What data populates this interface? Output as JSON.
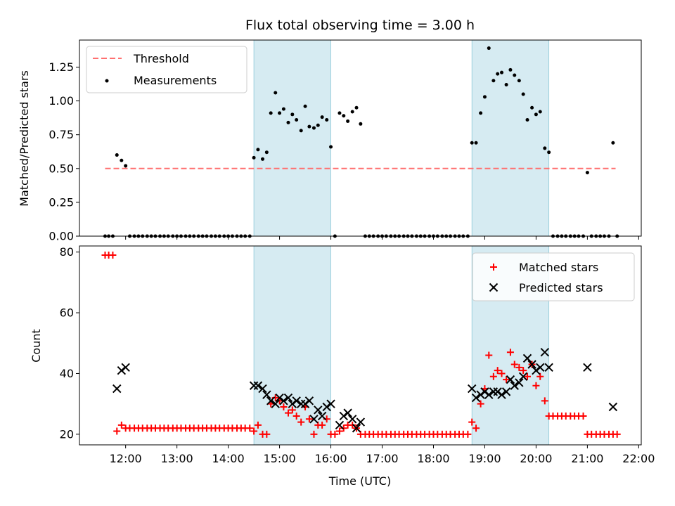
{
  "chart_data": [
    {
      "type": "scatter",
      "title": "Flux total observing time = 3.00 h",
      "xlabel": "",
      "ylabel": "Matched/Predicted stars",
      "ylim": [
        0,
        1.45
      ],
      "yticks": [
        0,
        0.25,
        0.5,
        0.75,
        1.0,
        1.25
      ],
      "ytick_labels": [
        "0.00",
        "0.25",
        "0.50",
        "0.75",
        "1.00",
        "1.25"
      ],
      "shaded_intervals": [
        [
          14.5,
          16.0
        ],
        [
          18.75,
          20.25
        ]
      ],
      "legend": [
        {
          "label": "Threshold",
          "style": "dashed-line",
          "color": "#ff7070"
        },
        {
          "label": "Measurements",
          "style": "dot",
          "color": "#000000"
        }
      ],
      "legend_position": "top-left",
      "threshold": {
        "value": 0.5,
        "x_range": [
          11.6,
          21.55
        ]
      },
      "measurements": [
        [
          11.6,
          0
        ],
        [
          11.67,
          0
        ],
        [
          11.75,
          0
        ],
        [
          11.83,
          0.6
        ],
        [
          11.92,
          0.56
        ],
        [
          12.0,
          0.52
        ],
        [
          12.08,
          0
        ],
        [
          12.17,
          0
        ],
        [
          12.25,
          0
        ],
        [
          12.33,
          0
        ],
        [
          12.42,
          0
        ],
        [
          12.5,
          0
        ],
        [
          12.58,
          0
        ],
        [
          12.67,
          0
        ],
        [
          12.75,
          0
        ],
        [
          12.83,
          0
        ],
        [
          12.92,
          0
        ],
        [
          13.0,
          0
        ],
        [
          13.08,
          0
        ],
        [
          13.17,
          0
        ],
        [
          13.25,
          0
        ],
        [
          13.33,
          0
        ],
        [
          13.42,
          0
        ],
        [
          13.5,
          0
        ],
        [
          13.58,
          0
        ],
        [
          13.67,
          0
        ],
        [
          13.75,
          0
        ],
        [
          13.83,
          0
        ],
        [
          13.92,
          0
        ],
        [
          14.0,
          0
        ],
        [
          14.08,
          0
        ],
        [
          14.17,
          0
        ],
        [
          14.25,
          0
        ],
        [
          14.33,
          0
        ],
        [
          14.42,
          0
        ],
        [
          14.5,
          0.58
        ],
        [
          14.58,
          0.64
        ],
        [
          14.67,
          0.57
        ],
        [
          14.75,
          0.62
        ],
        [
          14.83,
          0.91
        ],
        [
          14.92,
          1.06
        ],
        [
          15.0,
          0.91
        ],
        [
          15.08,
          0.94
        ],
        [
          15.17,
          0.84
        ],
        [
          15.25,
          0.9
        ],
        [
          15.33,
          0.86
        ],
        [
          15.42,
          0.78
        ],
        [
          15.5,
          0.96
        ],
        [
          15.58,
          0.81
        ],
        [
          15.67,
          0.8
        ],
        [
          15.75,
          0.82
        ],
        [
          15.83,
          0.88
        ],
        [
          15.92,
          0.86
        ],
        [
          16.0,
          0.66
        ],
        [
          16.08,
          0
        ],
        [
          16.17,
          0.91
        ],
        [
          16.25,
          0.89
        ],
        [
          16.33,
          0.85
        ],
        [
          16.42,
          0.92
        ],
        [
          16.5,
          0.95
        ],
        [
          16.58,
          0.83
        ],
        [
          16.67,
          0
        ],
        [
          16.75,
          0
        ],
        [
          16.83,
          0
        ],
        [
          16.92,
          0
        ],
        [
          17.0,
          0
        ],
        [
          17.08,
          0
        ],
        [
          17.17,
          0
        ],
        [
          17.25,
          0
        ],
        [
          17.33,
          0
        ],
        [
          17.42,
          0
        ],
        [
          17.5,
          0
        ],
        [
          17.58,
          0
        ],
        [
          17.67,
          0
        ],
        [
          17.75,
          0
        ],
        [
          17.83,
          0
        ],
        [
          17.92,
          0
        ],
        [
          18.0,
          0
        ],
        [
          18.08,
          0
        ],
        [
          18.17,
          0
        ],
        [
          18.25,
          0
        ],
        [
          18.33,
          0
        ],
        [
          18.42,
          0
        ],
        [
          18.5,
          0
        ],
        [
          18.58,
          0
        ],
        [
          18.67,
          0
        ],
        [
          18.75,
          0.69
        ],
        [
          18.83,
          0.69
        ],
        [
          18.92,
          0.91
        ],
        [
          19.0,
          1.03
        ],
        [
          19.08,
          1.39
        ],
        [
          19.17,
          1.15
        ],
        [
          19.25,
          1.2
        ],
        [
          19.33,
          1.21
        ],
        [
          19.42,
          1.12
        ],
        [
          19.5,
          1.23
        ],
        [
          19.58,
          1.19
        ],
        [
          19.67,
          1.15
        ],
        [
          19.75,
          1.05
        ],
        [
          19.83,
          0.86
        ],
        [
          19.92,
          0.95
        ],
        [
          20.0,
          0.9
        ],
        [
          20.08,
          0.92
        ],
        [
          20.17,
          0.65
        ],
        [
          20.25,
          0.62
        ],
        [
          20.33,
          0
        ],
        [
          20.42,
          0
        ],
        [
          20.5,
          0
        ],
        [
          20.58,
          0
        ],
        [
          20.67,
          0
        ],
        [
          20.75,
          0
        ],
        [
          20.83,
          0
        ],
        [
          20.92,
          0
        ],
        [
          21.0,
          0.47
        ],
        [
          21.08,
          0
        ],
        [
          21.17,
          0
        ],
        [
          21.25,
          0
        ],
        [
          21.33,
          0
        ],
        [
          21.42,
          0
        ],
        [
          21.5,
          0.69
        ],
        [
          21.58,
          0
        ]
      ]
    },
    {
      "type": "scatter",
      "title": "",
      "xlabel": "Time (UTC)",
      "ylabel": "Count",
      "xlim": [
        11.1,
        22.05
      ],
      "ylim": [
        16.5,
        82
      ],
      "yticks": [
        20,
        40,
        60,
        80
      ],
      "ytick_labels": [
        "20",
        "40",
        "60",
        "80"
      ],
      "xticks": [
        12,
        13,
        14,
        15,
        16,
        17,
        18,
        19,
        20,
        21,
        22
      ],
      "xtick_labels": [
        "12:00",
        "13:00",
        "14:00",
        "15:00",
        "16:00",
        "17:00",
        "18:00",
        "19:00",
        "20:00",
        "21:00",
        "22:00"
      ],
      "shaded_intervals": [
        [
          14.5,
          16.0
        ],
        [
          18.75,
          20.25
        ]
      ],
      "legend": [
        {
          "label": "Matched stars",
          "style": "plus",
          "color": "#ff0000"
        },
        {
          "label": "Predicted stars",
          "style": "x",
          "color": "#000000"
        }
      ],
      "legend_position": "top-right",
      "matched": [
        [
          11.6,
          79
        ],
        [
          11.67,
          79
        ],
        [
          11.75,
          79
        ],
        [
          11.83,
          21
        ],
        [
          11.92,
          23
        ],
        [
          12.0,
          22
        ],
        [
          12.08,
          22
        ],
        [
          12.17,
          22
        ],
        [
          12.25,
          22
        ],
        [
          12.33,
          22
        ],
        [
          12.42,
          22
        ],
        [
          12.5,
          22
        ],
        [
          12.58,
          22
        ],
        [
          12.67,
          22
        ],
        [
          12.75,
          22
        ],
        [
          12.83,
          22
        ],
        [
          12.92,
          22
        ],
        [
          13.0,
          22
        ],
        [
          13.08,
          22
        ],
        [
          13.17,
          22
        ],
        [
          13.25,
          22
        ],
        [
          13.33,
          22
        ],
        [
          13.42,
          22
        ],
        [
          13.5,
          22
        ],
        [
          13.58,
          22
        ],
        [
          13.67,
          22
        ],
        [
          13.75,
          22
        ],
        [
          13.83,
          22
        ],
        [
          13.92,
          22
        ],
        [
          14.0,
          22
        ],
        [
          14.08,
          22
        ],
        [
          14.17,
          22
        ],
        [
          14.25,
          22
        ],
        [
          14.33,
          22
        ],
        [
          14.42,
          22
        ],
        [
          14.5,
          21
        ],
        [
          14.58,
          23
        ],
        [
          14.67,
          20
        ],
        [
          14.75,
          20
        ],
        [
          14.83,
          30
        ],
        [
          14.92,
          32
        ],
        [
          15.0,
          31
        ],
        [
          15.08,
          29
        ],
        [
          15.17,
          27
        ],
        [
          15.25,
          28
        ],
        [
          15.33,
          26
        ],
        [
          15.42,
          24
        ],
        [
          15.5,
          29
        ],
        [
          15.58,
          25
        ],
        [
          15.67,
          20
        ],
        [
          15.75,
          23
        ],
        [
          15.83,
          23
        ],
        [
          15.92,
          25
        ],
        [
          16.0,
          20
        ],
        [
          16.08,
          20
        ],
        [
          16.17,
          21
        ],
        [
          16.25,
          22
        ],
        [
          16.33,
          23
        ],
        [
          16.42,
          23
        ],
        [
          16.5,
          22
        ],
        [
          16.58,
          20
        ],
        [
          16.67,
          20
        ],
        [
          16.75,
          20
        ],
        [
          16.83,
          20
        ],
        [
          16.92,
          20
        ],
        [
          17.0,
          20
        ],
        [
          17.08,
          20
        ],
        [
          17.17,
          20
        ],
        [
          17.25,
          20
        ],
        [
          17.33,
          20
        ],
        [
          17.42,
          20
        ],
        [
          17.5,
          20
        ],
        [
          17.58,
          20
        ],
        [
          17.67,
          20
        ],
        [
          17.75,
          20
        ],
        [
          17.83,
          20
        ],
        [
          17.92,
          20
        ],
        [
          18.0,
          20
        ],
        [
          18.08,
          20
        ],
        [
          18.17,
          20
        ],
        [
          18.25,
          20
        ],
        [
          18.33,
          20
        ],
        [
          18.42,
          20
        ],
        [
          18.5,
          20
        ],
        [
          18.58,
          20
        ],
        [
          18.67,
          20
        ],
        [
          18.75,
          24
        ],
        [
          18.83,
          22
        ],
        [
          18.92,
          30
        ],
        [
          19.0,
          35
        ],
        [
          19.08,
          46
        ],
        [
          19.17,
          39
        ],
        [
          19.25,
          41
        ],
        [
          19.33,
          40
        ],
        [
          19.42,
          38
        ],
        [
          19.5,
          47
        ],
        [
          19.58,
          43
        ],
        [
          19.67,
          42
        ],
        [
          19.75,
          41
        ],
        [
          19.83,
          39
        ],
        [
          19.92,
          43
        ],
        [
          20.0,
          36
        ],
        [
          20.08,
          39
        ],
        [
          20.17,
          31
        ],
        [
          20.25,
          26
        ],
        [
          20.33,
          26
        ],
        [
          20.42,
          26
        ],
        [
          20.5,
          26
        ],
        [
          20.58,
          26
        ],
        [
          20.67,
          26
        ],
        [
          20.75,
          26
        ],
        [
          20.83,
          26
        ],
        [
          20.92,
          26
        ],
        [
          21.0,
          20
        ],
        [
          21.08,
          20
        ],
        [
          21.17,
          20
        ],
        [
          21.25,
          20
        ],
        [
          21.33,
          20
        ],
        [
          21.42,
          20
        ],
        [
          21.5,
          20
        ],
        [
          21.58,
          20
        ]
      ],
      "predicted": [
        [
          11.83,
          35
        ],
        [
          11.92,
          41
        ],
        [
          12.0,
          42
        ],
        [
          14.5,
          36
        ],
        [
          14.58,
          36
        ],
        [
          14.67,
          35
        ],
        [
          14.75,
          33
        ],
        [
          14.83,
          31
        ],
        [
          14.92,
          30
        ],
        [
          15.0,
          32
        ],
        [
          15.08,
          31
        ],
        [
          15.17,
          32
        ],
        [
          15.25,
          30
        ],
        [
          15.33,
          31
        ],
        [
          15.42,
          30
        ],
        [
          15.5,
          30
        ],
        [
          15.58,
          31
        ],
        [
          15.67,
          25
        ],
        [
          15.75,
          28
        ],
        [
          15.83,
          26
        ],
        [
          15.92,
          29
        ],
        [
          16.0,
          30
        ],
        [
          16.17,
          23
        ],
        [
          16.25,
          26
        ],
        [
          16.33,
          27
        ],
        [
          16.42,
          25
        ],
        [
          16.5,
          22
        ],
        [
          16.58,
          24
        ],
        [
          18.75,
          35
        ],
        [
          18.83,
          32
        ],
        [
          18.92,
          33
        ],
        [
          19.0,
          34
        ],
        [
          19.08,
          33
        ],
        [
          19.17,
          34
        ],
        [
          19.25,
          34
        ],
        [
          19.33,
          33
        ],
        [
          19.42,
          34
        ],
        [
          19.5,
          38
        ],
        [
          19.58,
          36
        ],
        [
          19.67,
          37
        ],
        [
          19.75,
          39
        ],
        [
          19.83,
          45
        ],
        [
          19.92,
          43
        ],
        [
          20.0,
          41
        ],
        [
          20.08,
          42
        ],
        [
          20.17,
          47
        ],
        [
          20.25,
          42
        ],
        [
          21.0,
          42
        ],
        [
          21.5,
          29
        ]
      ]
    }
  ]
}
